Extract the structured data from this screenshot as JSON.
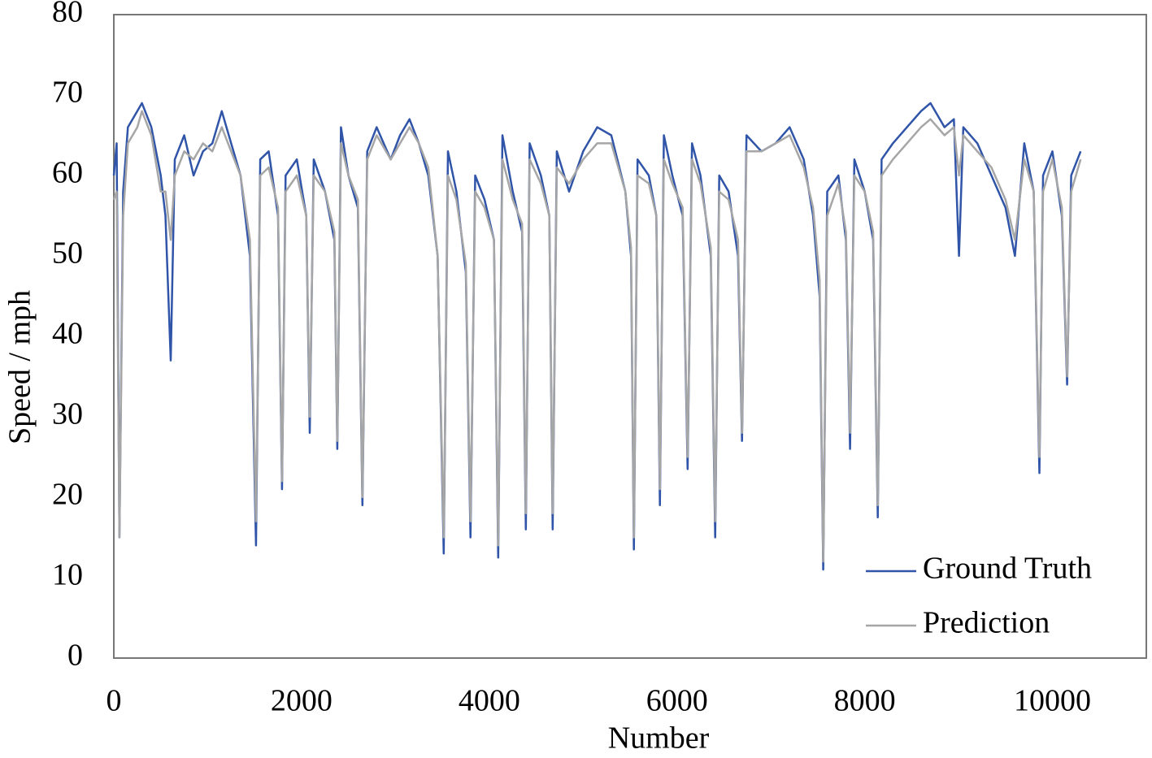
{
  "chart_data": {
    "type": "line",
    "xlabel": "Number",
    "ylabel": "Speed / mph",
    "xlim": [
      0,
      11000
    ],
    "ylim": [
      0,
      80
    ],
    "xticks": [
      0,
      2000,
      4000,
      6000,
      8000,
      10000
    ],
    "yticks": [
      0,
      10,
      20,
      30,
      40,
      50,
      60,
      70,
      80
    ],
    "grid": false,
    "legend": "lower right",
    "x": [
      0,
      30,
      60,
      100,
      150,
      250,
      300,
      400,
      500,
      550,
      606,
      650,
      750,
      850,
      950,
      1050,
      1150,
      1250,
      1350,
      1450,
      1515,
      1560,
      1650,
      1750,
      1792,
      1830,
      1950,
      2050,
      2087,
      2130,
      2250,
      2350,
      2381,
      2420,
      2500,
      2600,
      2649,
      2700,
      2800,
      2950,
      3050,
      3150,
      3250,
      3350,
      3450,
      3515,
      3560,
      3650,
      3750,
      3800,
      3850,
      3950,
      4050,
      4095,
      4140,
      4250,
      4350,
      4390,
      4430,
      4550,
      4640,
      4675,
      4720,
      4850,
      5000,
      5150,
      5300,
      5450,
      5510,
      5541,
      5580,
      5700,
      5780,
      5818,
      5860,
      5950,
      6060,
      6113,
      6160,
      6250,
      6360,
      6407,
      6450,
      6550,
      6650,
      6693,
      6740,
      6900,
      7050,
      7200,
      7350,
      7450,
      7520,
      7558,
      7600,
      7720,
      7800,
      7844,
      7890,
      8000,
      8090,
      8139,
      8180,
      8300,
      8450,
      8600,
      8700,
      8850,
      8950,
      9004,
      9050,
      9200,
      9350,
      9500,
      9600,
      9700,
      9800,
      9861,
      9900,
      10000,
      10100,
      10156,
      10200,
      10300
    ],
    "series": [
      {
        "name": "Ground Truth",
        "color": "#2f54a8",
        "values": [
          60,
          64,
          15,
          58,
          66,
          68,
          69,
          66,
          60,
          55,
          37,
          62,
          65,
          60,
          63,
          64,
          68,
          64,
          60,
          50,
          14,
          62,
          63,
          55,
          21,
          60,
          62,
          55,
          28,
          62,
          58,
          52,
          26,
          66,
          60,
          56,
          19,
          63,
          66,
          62,
          65,
          67,
          64,
          60,
          50,
          13,
          63,
          58,
          48,
          15,
          60,
          57,
          52,
          12.5,
          65,
          58,
          53,
          16,
          64,
          60,
          55,
          16,
          63,
          58,
          63,
          66,
          65,
          58,
          50,
          13.5,
          62,
          60,
          55,
          19,
          65,
          60,
          55,
          23.5,
          64,
          60,
          50,
          15,
          60,
          58,
          50,
          27,
          65,
          63,
          64,
          66,
          62,
          55,
          45,
          11,
          58,
          60,
          52,
          26,
          62,
          58,
          52,
          17.5,
          62,
          64,
          66,
          68,
          69,
          66,
          67,
          50,
          66,
          64,
          60,
          56,
          50,
          64,
          58,
          23,
          60,
          63,
          55,
          34,
          60,
          63
        ]
      },
      {
        "name": "Prediction",
        "color": "#a6a6a6",
        "values": [
          57,
          58,
          15,
          55,
          64,
          66,
          68,
          65,
          58,
          58,
          52,
          60,
          63,
          62,
          64,
          63,
          66,
          63,
          60,
          52,
          17,
          60,
          61,
          56,
          22,
          58,
          60,
          55,
          30,
          60,
          58,
          53,
          27,
          64,
          60,
          57,
          20,
          62,
          65,
          62,
          64,
          66,
          64,
          61,
          50,
          15,
          60,
          57,
          49,
          17,
          58,
          56,
          52,
          14,
          62,
          57,
          54,
          18,
          62,
          59,
          55,
          18,
          61,
          59,
          62,
          64,
          64,
          58,
          51,
          15,
          60,
          59,
          55,
          21,
          62,
          59,
          56,
          25,
          62,
          59,
          51,
          17,
          58,
          57,
          52,
          28,
          63,
          63,
          64,
          65,
          61,
          56,
          47,
          12,
          55,
          59,
          53,
          28,
          60,
          58,
          53,
          19,
          60,
          62,
          64,
          66,
          67,
          65,
          66,
          60,
          65,
          63,
          61,
          57,
          52,
          62,
          58,
          25,
          58,
          62,
          56,
          35,
          58,
          62
        ]
      }
    ]
  }
}
